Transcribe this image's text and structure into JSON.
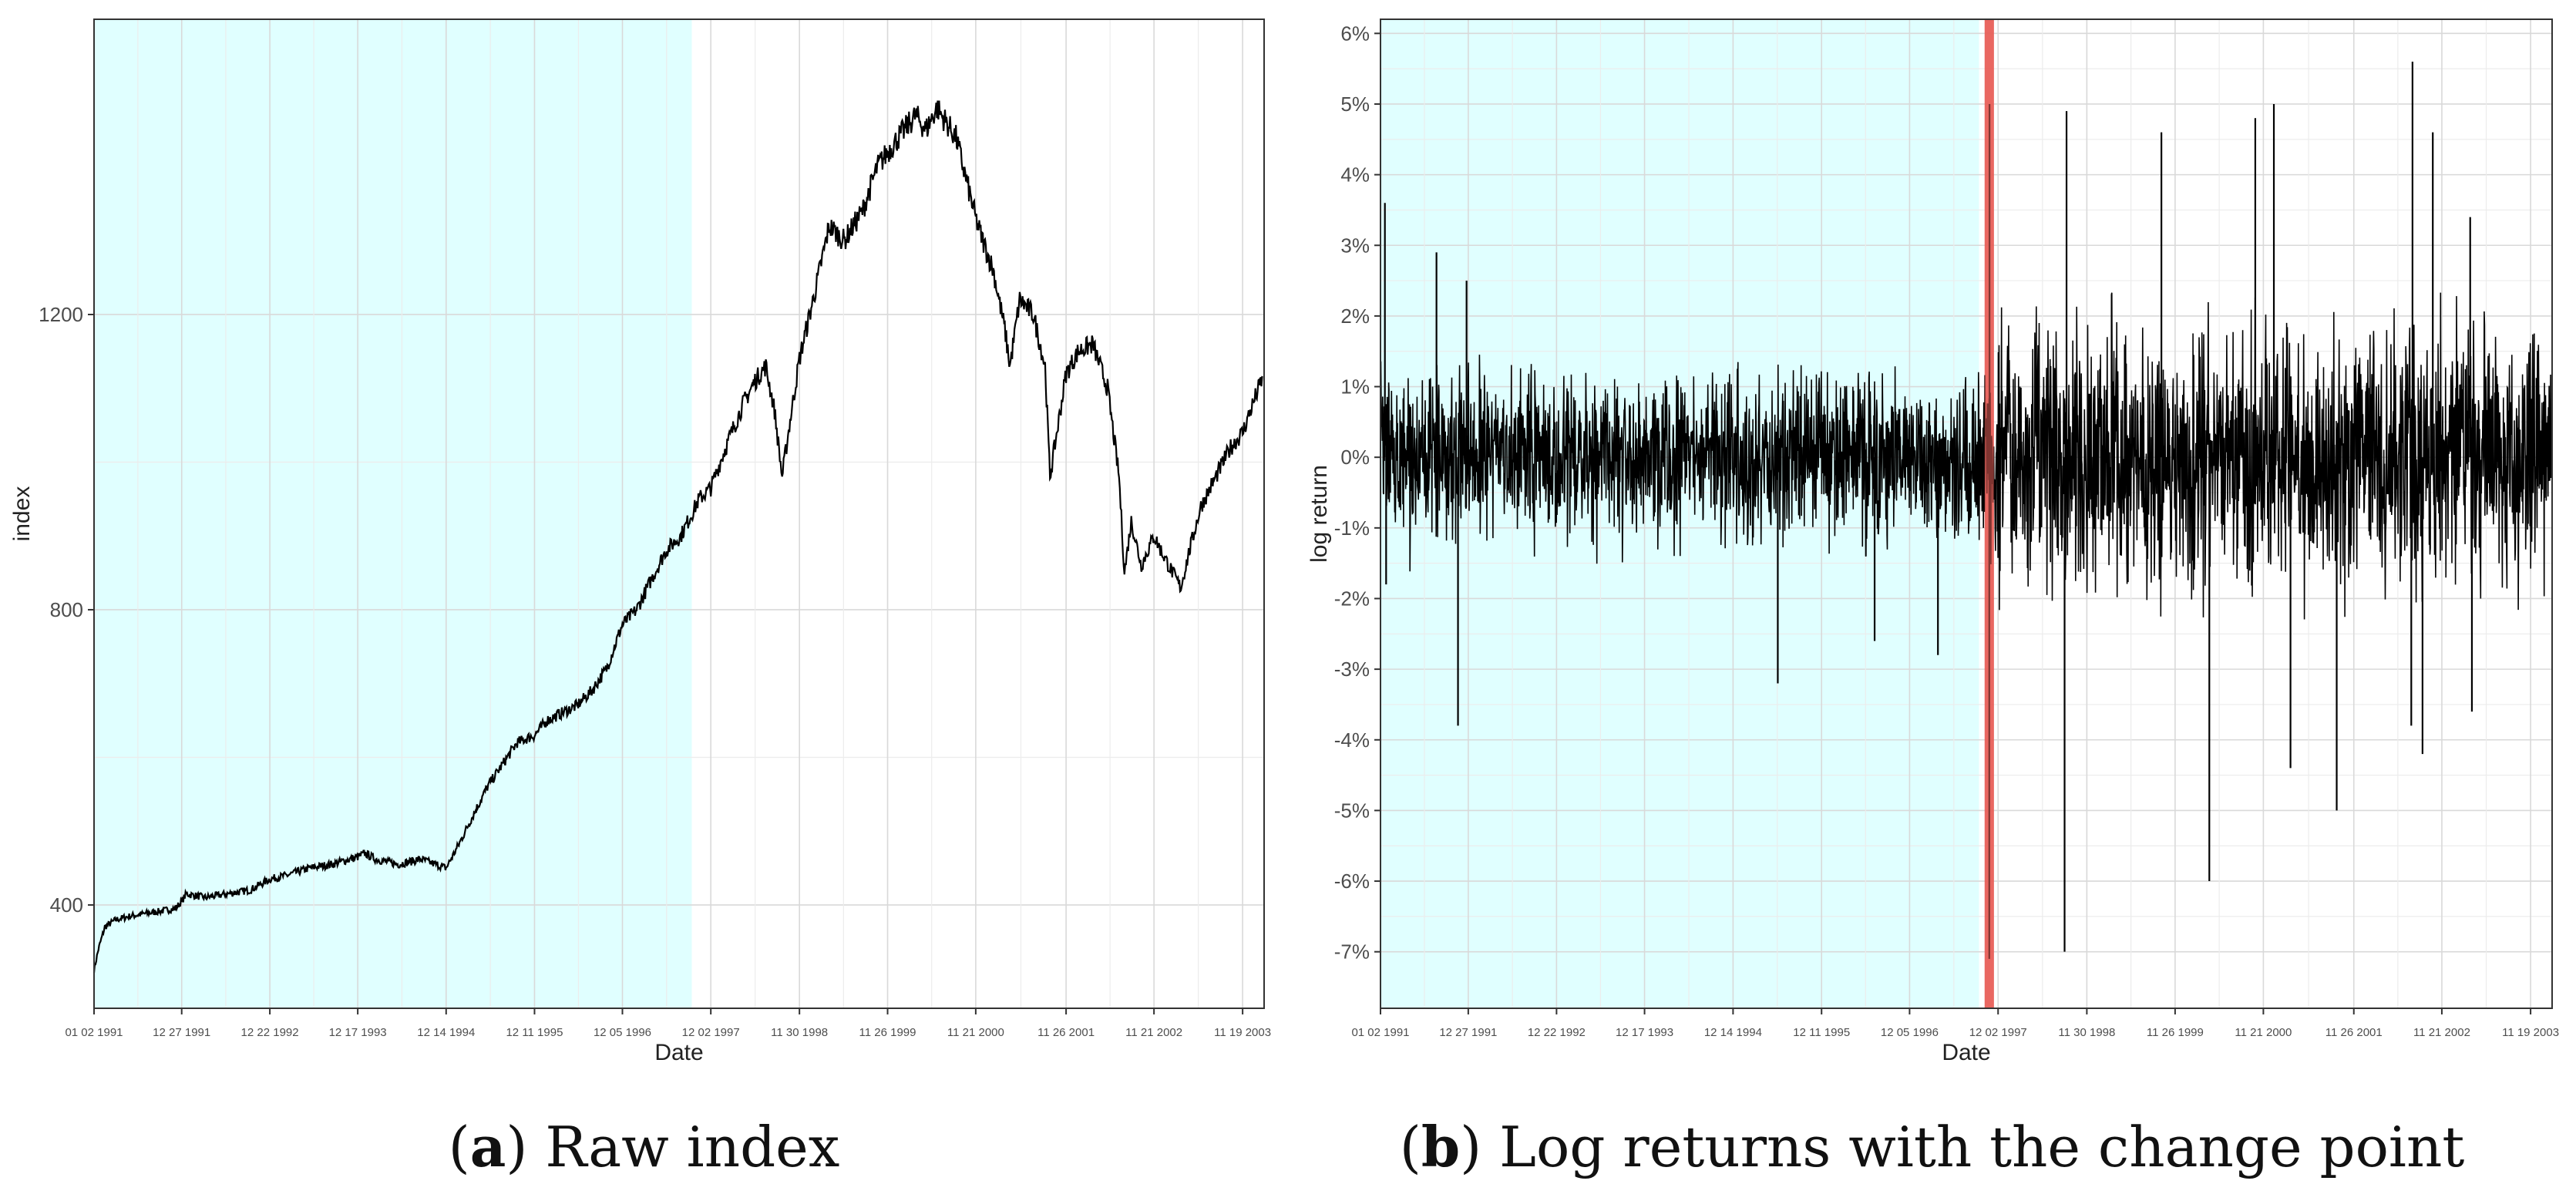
{
  "chart_data": [
    {
      "id": "a",
      "type": "line",
      "caption_letter": "a",
      "caption_text": "Raw index",
      "xlabel": "Date",
      "ylabel": "index",
      "xlim": [
        "1991-01-02",
        "2004-02-15"
      ],
      "ylim": [
        260,
        1600
      ],
      "yticks": [
        400,
        800,
        1200
      ],
      "ytick_labels": [
        "400",
        "800",
        "1200"
      ],
      "xticks": [
        "1991-01-02",
        "1991-12-27",
        "1992-12-22",
        "1993-12-17",
        "1994-12-14",
        "1995-12-11",
        "1996-12-05",
        "1997-12-02",
        "1998-11-30",
        "1999-11-26",
        "2000-11-21",
        "2001-11-26",
        "2002-11-21",
        "2003-11-19"
      ],
      "xtick_labels": [
        "01 02 1991",
        "12 27 1991",
        "12 22 1992",
        "12 17 1993",
        "12 14 1994",
        "12 11 1995",
        "12 05 1996",
        "12 02 1997",
        "11 30 1998",
        "11 26 1999",
        "11 21 2000",
        "11 26 2001",
        "11 21 2002",
        "11 19 2003"
      ],
      "grid": true,
      "shaded_region": {
        "from": "1990-08-01",
        "to": "1997-09-15",
        "color": "#e0ffff"
      },
      "series": [
        {
          "x": [
            "1991-01-02",
            "1991-01-20",
            "1991-02-15",
            "1991-04-01",
            "1991-06-01",
            "1991-09-01",
            "1991-12-01",
            "1991-12-27",
            "1992-01-15",
            "1992-04-01",
            "1992-07-01",
            "1992-10-01",
            "1992-12-22",
            "1993-03-01",
            "1993-06-01",
            "1993-09-01",
            "1993-12-17",
            "1994-01-15",
            "1994-03-01",
            "1994-06-01",
            "1994-09-01",
            "1994-12-14",
            "1995-02-01",
            "1995-04-01",
            "1995-06-01",
            "1995-08-01",
            "1995-10-01",
            "1995-12-11",
            "1996-02-01",
            "1996-04-01",
            "1996-06-01",
            "1996-08-01",
            "1996-10-01",
            "1996-12-05",
            "1997-02-01",
            "1997-04-01",
            "1997-06-01",
            "1997-08-01",
            "1997-09-15",
            "1997-10-15",
            "1997-12-02",
            "1998-02-01",
            "1998-04-15",
            "1998-06-01",
            "1998-07-15",
            "1998-08-20",
            "1998-09-20",
            "1998-10-20",
            "1998-11-30",
            "1999-02-01",
            "1999-04-01",
            "1999-06-01",
            "1999-08-15",
            "1999-10-15",
            "1999-11-26",
            "2000-01-10",
            "2000-03-20",
            "2000-05-01",
            "2000-06-15",
            "2000-09-01",
            "2000-10-15",
            "2000-11-21",
            "2000-12-20",
            "2001-02-01",
            "2001-03-20",
            "2001-04-10",
            "2001-05-20",
            "2001-07-15",
            "2001-09-01",
            "2001-09-21",
            "2001-11-26",
            "2002-01-15",
            "2002-03-15",
            "2002-05-15",
            "2002-07-01",
            "2002-07-23",
            "2002-08-20",
            "2002-09-30",
            "2002-11-21",
            "2002-12-20",
            "2003-01-20",
            "2003-03-11",
            "2003-04-15",
            "2003-06-01",
            "2003-08-01",
            "2003-10-01",
            "2003-11-19",
            "2004-01-01",
            "2004-02-10"
          ],
          "y": [
            312,
            340,
            370,
            380,
            385,
            390,
            395,
            405,
            415,
            410,
            415,
            420,
            435,
            440,
            450,
            455,
            465,
            470,
            462,
            455,
            462,
            450,
            480,
            520,
            560,
            590,
            620,
            630,
            650,
            660,
            670,
            690,
            720,
            780,
            800,
            840,
            880,
            900,
            930,
            950,
            965,
            1020,
            1080,
            1110,
            1130,
            1070,
            980,
            1050,
            1140,
            1230,
            1320,
            1300,
            1340,
            1400,
            1420,
            1440,
            1470,
            1450,
            1480,
            1440,
            1380,
            1330,
            1300,
            1260,
            1180,
            1130,
            1220,
            1200,
            1130,
            980,
            1120,
            1150,
            1160,
            1100,
            980,
            850,
            920,
            860,
            900,
            880,
            860,
            830,
            880,
            940,
            980,
            1020,
            1040,
            1080,
            1115
          ]
        }
      ]
    },
    {
      "id": "b",
      "type": "line",
      "caption_letter": "b",
      "caption_text": "Log returns with the change point",
      "xlabel": "Date",
      "ylabel": "log return",
      "xlim": [
        "1991-01-02",
        "2004-02-15"
      ],
      "ylim": [
        -7.8,
        6.2
      ],
      "yticks": [
        -7,
        -6,
        -5,
        -4,
        -3,
        -2,
        -1,
        0,
        1,
        2,
        3,
        4,
        5,
        6
      ],
      "ytick_labels": [
        "-7%",
        "-6%",
        "-5%",
        "-4%",
        "-3%",
        "-2%",
        "-1%",
        "0%",
        "1%",
        "2%",
        "3%",
        "4%",
        "5%",
        "6%"
      ],
      "xticks": [
        "1991-01-02",
        "1991-12-27",
        "1992-12-22",
        "1993-12-17",
        "1994-12-14",
        "1995-12-11",
        "1996-12-05",
        "1997-12-02",
        "1998-11-30",
        "1999-11-26",
        "2000-11-21",
        "2001-11-26",
        "2002-11-21",
        "2003-11-19"
      ],
      "xtick_labels": [
        "01 02 1991",
        "12 27 1991",
        "12 22 1992",
        "12 17 1993",
        "12 14 1994",
        "12 11 1995",
        "12 05 1996",
        "12 02 1997",
        "11 30 1998",
        "11 26 1999",
        "11 21 2000",
        "11 26 2001",
        "11 21 2002",
        "11 19 2003"
      ],
      "grid": true,
      "shaded_region": {
        "from": "1990-08-01",
        "to": "1997-09-15",
        "color": "#e0ffff"
      },
      "change_point": {
        "date": "1997-10-27",
        "color": "#e8605a"
      },
      "volatility_regimes": [
        {
          "from": "1991-01-02",
          "to": "1997-10-27",
          "band": 1.0
        },
        {
          "from": "1997-10-27",
          "to": "2004-02-10",
          "band": 1.6
        }
      ],
      "spikes": [
        {
          "x": "1991-01-20",
          "y": 3.6
        },
        {
          "x": "1991-01-25",
          "y": -1.8
        },
        {
          "x": "1991-08-19",
          "y": 2.9
        },
        {
          "x": "1991-11-15",
          "y": -3.8
        },
        {
          "x": "1991-12-20",
          "y": 2.5
        },
        {
          "x": "1995-06-15",
          "y": -3.2
        },
        {
          "x": "1996-07-15",
          "y": -2.6
        },
        {
          "x": "1997-03-31",
          "y": -2.8
        },
        {
          "x": "1997-10-27",
          "y": -7.1
        },
        {
          "x": "1997-10-28",
          "y": 5.0
        },
        {
          "x": "1998-08-31",
          "y": -7.0
        },
        {
          "x": "1998-09-08",
          "y": 4.9
        },
        {
          "x": "1999-10-01",
          "y": 4.6
        },
        {
          "x": "2000-04-14",
          "y": -6.0
        },
        {
          "x": "2000-10-19",
          "y": 4.8
        },
        {
          "x": "2001-01-03",
          "y": 5.0
        },
        {
          "x": "2001-03-12",
          "y": -4.4
        },
        {
          "x": "2001-09-17",
          "y": -5.0
        },
        {
          "x": "2002-07-24",
          "y": 5.6
        },
        {
          "x": "2002-07-19",
          "y": -3.8
        },
        {
          "x": "2002-09-03",
          "y": -4.2
        },
        {
          "x": "2002-10-15",
          "y": 4.6
        },
        {
          "x": "2003-03-24",
          "y": -3.6
        },
        {
          "x": "2003-03-17",
          "y": 3.4
        }
      ]
    }
  ]
}
